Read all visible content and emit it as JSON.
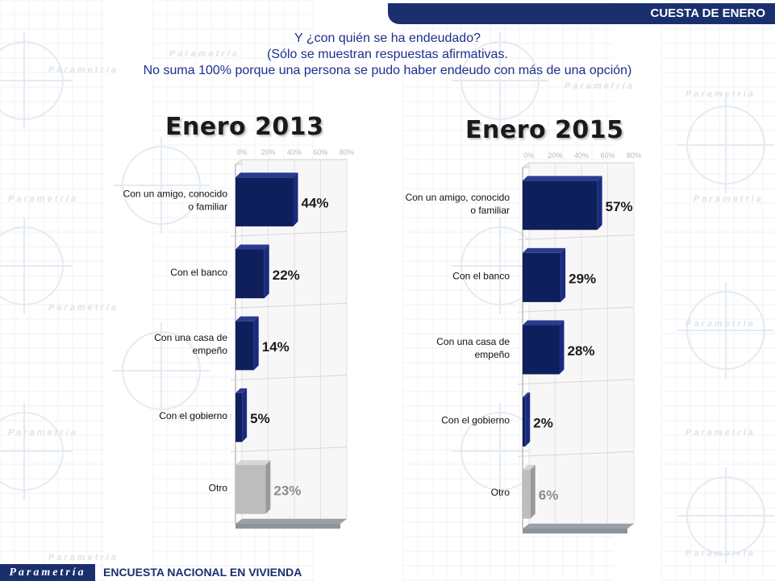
{
  "header": {
    "label": "CUESTA DE ENERO"
  },
  "subtitle": {
    "line1": "Y ¿con quién se ha endeudado?",
    "line2": "(Sólo se muestran respuestas afirmativas.",
    "line3": "No suma 100% porque una persona se pudo haber endeudo con más de una opción)"
  },
  "footer": {
    "logo": "Parametría",
    "title": "ENCUESTA NACIONAL EN VIVIENDA"
  },
  "background": {
    "watermark": "Parametría"
  },
  "colors": {
    "primary_bar": "#0f1f5c",
    "other_bar": "#bdbdbd",
    "header": "#1a2f6e",
    "subtitle": "#1e2f8c"
  },
  "chart_data": [
    {
      "type": "bar",
      "orientation": "horizontal",
      "title": "Enero 2013",
      "categories": [
        "Con un amigo, conocido o familiar",
        "Con el banco",
        "Con una casa de empeño",
        "Con el gobierno",
        "Otro"
      ],
      "category_lines": [
        [
          "Con un amigo, conocido",
          "o familiar"
        ],
        [
          "Con el banco"
        ],
        [
          "Con una casa de",
          "empeño"
        ],
        [
          "Con el gobierno"
        ],
        [
          "Otro"
        ]
      ],
      "values": [
        44,
        22,
        14,
        5,
        23
      ],
      "data_labels": [
        "44%",
        "22%",
        "14%",
        "5%",
        "23%"
      ],
      "xlim": [
        0,
        80
      ],
      "xticks": [
        "0%",
        "20%",
        "40%",
        "60%",
        "80%"
      ],
      "grid": true
    },
    {
      "type": "bar",
      "orientation": "horizontal",
      "title": "Enero 2015",
      "categories": [
        "Con un amigo, conocido o familiar",
        "Con el banco",
        "Con una casa de empeño",
        "Con el gobierno",
        "Otro"
      ],
      "category_lines": [
        [
          "Con un amigo, conocido",
          "o familiar"
        ],
        [
          "Con el banco"
        ],
        [
          "Con una casa de",
          "empeño"
        ],
        [
          "Con el gobierno"
        ],
        [
          "Otro"
        ]
      ],
      "values": [
        57,
        29,
        28,
        2,
        6
      ],
      "data_labels": [
        "57%",
        "29%",
        "28%",
        "2%",
        "6%"
      ],
      "xlim": [
        0,
        80
      ],
      "xticks": [
        "0%",
        "20%",
        "40%",
        "60%",
        "80%"
      ],
      "grid": true
    }
  ]
}
